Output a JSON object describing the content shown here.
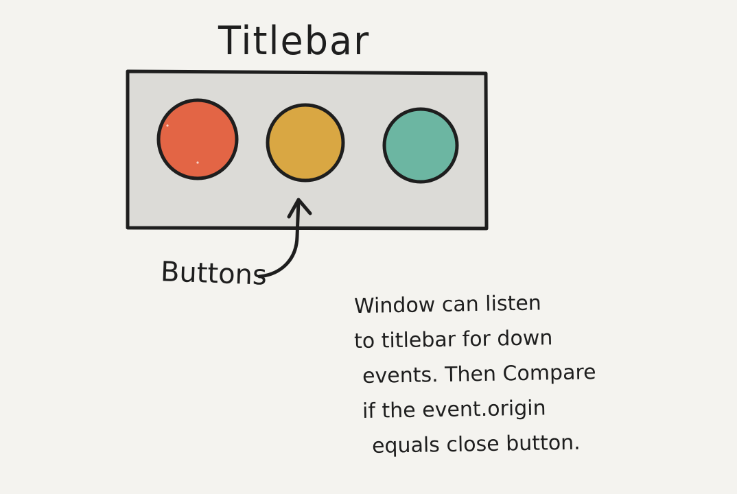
{
  "labels": {
    "titlebar": "Titlebar",
    "buttons": "Buttons"
  },
  "note": [
    "Window can listen",
    "to titlebar for down",
    "events. Then Compare",
    "if the event.origin",
    "equals close button."
  ],
  "colors": {
    "background": "#f4f3ef",
    "titlebar_fill": "#dcdbd7",
    "stroke": "#1e1e1e",
    "close_button": "#e36545",
    "minimize_button": "#d9a743",
    "maximize_button": "#6cb6a2"
  },
  "buttons": [
    {
      "role": "close",
      "color": "#e36545"
    },
    {
      "role": "minimize",
      "color": "#d9a743"
    },
    {
      "role": "maximize",
      "color": "#6cb6a2"
    }
  ]
}
